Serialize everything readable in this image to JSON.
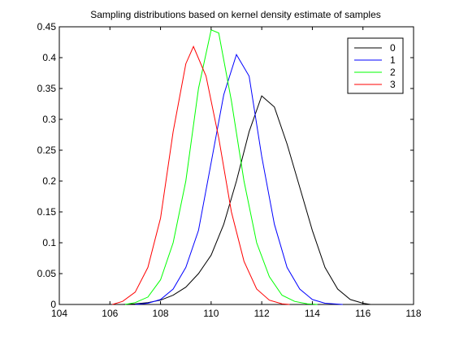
{
  "chart_data": {
    "type": "line",
    "title": "Sampling distributions based on kernel density estimate of samples",
    "xlabel": "",
    "ylabel": "",
    "xlim": [
      104,
      118
    ],
    "ylim": [
      0,
      0.45
    ],
    "xticks": [
      104,
      106,
      108,
      110,
      112,
      114,
      116,
      118
    ],
    "yticks": [
      0,
      0.05,
      0.1,
      0.15,
      0.2,
      0.25,
      0.3,
      0.35,
      0.4,
      0.45
    ],
    "xtick_labels": [
      "104",
      "106",
      "108",
      "110",
      "112",
      "114",
      "116",
      "118"
    ],
    "ytick_labels": [
      "0",
      "0.05",
      "0.1",
      "0.15",
      "0.2",
      "0.25",
      "0.3",
      "0.35",
      "0.4",
      "0.45"
    ],
    "grid": false,
    "legend_position": "top-right",
    "series": [
      {
        "name": "0",
        "color": "#000000",
        "x": [
          106.5,
          107,
          107.5,
          108,
          108.5,
          109,
          109.5,
          110,
          110.5,
          111,
          111.5,
          112,
          112.5,
          113,
          113.5,
          114,
          114.5,
          115,
          115.5,
          116,
          116.3
        ],
        "y": [
          0.0,
          0.001,
          0.003,
          0.007,
          0.015,
          0.028,
          0.05,
          0.08,
          0.13,
          0.2,
          0.28,
          0.338,
          0.32,
          0.26,
          0.19,
          0.12,
          0.06,
          0.025,
          0.008,
          0.002,
          0.0
        ]
      },
      {
        "name": "1",
        "color": "#0000ff",
        "x": [
          107,
          107.5,
          108,
          108.5,
          109,
          109.5,
          110,
          110.5,
          111,
          111.5,
          112,
          112.5,
          113,
          113.5,
          114,
          114.5,
          115.2
        ],
        "y": [
          0.0,
          0.002,
          0.008,
          0.025,
          0.06,
          0.12,
          0.23,
          0.34,
          0.405,
          0.37,
          0.24,
          0.13,
          0.06,
          0.025,
          0.008,
          0.002,
          0.0
        ]
      },
      {
        "name": "2",
        "color": "#00ff00",
        "x": [
          106.6,
          107,
          107.5,
          108,
          108.5,
          109,
          109.5,
          110,
          110.3,
          110.8,
          111.3,
          111.8,
          112.3,
          112.8,
          113.3,
          113.8,
          114.2
        ],
        "y": [
          0.0,
          0.003,
          0.012,
          0.04,
          0.1,
          0.2,
          0.35,
          0.445,
          0.44,
          0.33,
          0.2,
          0.1,
          0.045,
          0.015,
          0.005,
          0.001,
          0.0
        ]
      },
      {
        "name": "3",
        "color": "#ff0000",
        "x": [
          106.1,
          106.5,
          107,
          107.5,
          108,
          108.5,
          109,
          109.3,
          109.8,
          110.3,
          110.8,
          111.3,
          111.8,
          112.3,
          112.8,
          113.1
        ],
        "y": [
          0.0,
          0.005,
          0.02,
          0.06,
          0.14,
          0.28,
          0.39,
          0.418,
          0.37,
          0.27,
          0.15,
          0.07,
          0.025,
          0.007,
          0.001,
          0.0
        ]
      }
    ]
  }
}
